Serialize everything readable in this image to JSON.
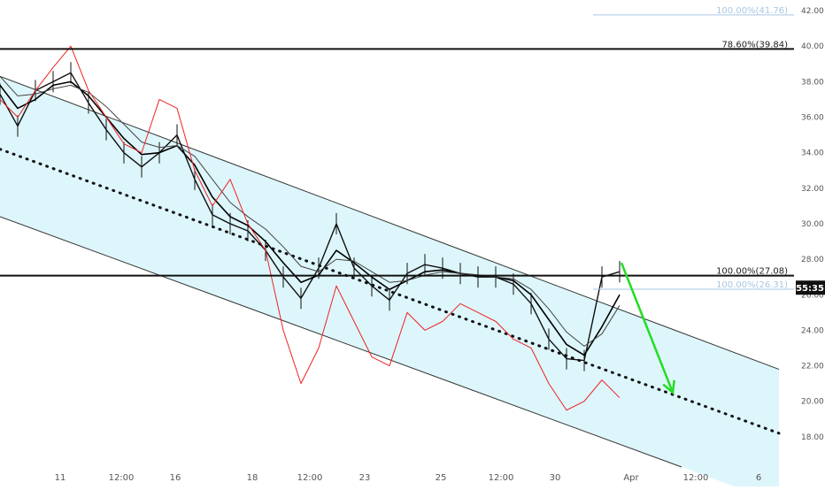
{
  "chart_data": {
    "type": "line",
    "title": "",
    "xlabel": "",
    "ylabel": "",
    "ylim": [
      16.3,
      42.6
    ],
    "y_ticks": [
      "18.00",
      "20.00",
      "22.00",
      "24.00",
      "26.00",
      "28.00",
      "30.00",
      "32.00",
      "34.00",
      "36.00",
      "38.00",
      "40.00",
      "42.00"
    ],
    "x_ticks": [
      "11",
      "12:00",
      "16",
      "18",
      "12:00",
      "23",
      "25",
      "12:00",
      "30",
      "Apr",
      "12:00",
      "6"
    ],
    "grid": false,
    "y_axis_position": "right",
    "price_tag": "55:35",
    "x": [
      0,
      20,
      40,
      60,
      80,
      100,
      120,
      140,
      160,
      180,
      200,
      220,
      240,
      260,
      280,
      300,
      320,
      340,
      360,
      380,
      400,
      420,
      440,
      460,
      480,
      500,
      520,
      540,
      560,
      580,
      600,
      620,
      640,
      660,
      680,
      700
    ],
    "series": [
      {
        "kind": "price",
        "values": [
          37.3,
          35.5,
          37.5,
          38.0,
          38.5,
          36.8,
          35.3,
          34.0,
          33.2,
          34.0,
          35.0,
          32.5,
          30.5,
          30.0,
          29.6,
          28.5,
          27.0,
          25.8,
          27.5,
          30.0,
          27.5,
          26.5,
          25.7,
          27.2,
          27.7,
          27.5,
          27.2,
          27.0,
          27.0,
          26.6,
          25.5,
          23.5,
          22.4,
          22.3,
          27.0,
          27.3
        ]
      },
      {
        "kind": "ma",
        "values": [
          37.8,
          36.5,
          37.0,
          37.8,
          38.0,
          37.2,
          36.0,
          34.8,
          33.9,
          34.0,
          34.4,
          33.3,
          31.5,
          30.4,
          29.9,
          29.0,
          27.8,
          26.7,
          27.1,
          28.5,
          27.8,
          27.0,
          26.3,
          26.8,
          27.3,
          27.4,
          27.2,
          27.1,
          27.0,
          26.8,
          26.0,
          24.6,
          23.2,
          22.6,
          24.2,
          26.0
        ]
      },
      {
        "kind": "ma",
        "values": [
          38.3,
          37.2,
          37.3,
          37.6,
          37.8,
          37.4,
          36.6,
          35.6,
          34.6,
          34.3,
          34.4,
          33.8,
          32.5,
          31.2,
          30.4,
          29.7,
          28.7,
          27.6,
          27.3,
          28.0,
          27.9,
          27.3,
          26.7,
          26.8,
          27.1,
          27.3,
          27.2,
          27.1,
          27.0,
          26.9,
          26.3,
          25.2,
          23.9,
          23.1,
          23.8,
          25.4
        ]
      },
      {
        "kind": "red",
        "values": [
          37.0,
          36.0,
          37.5,
          38.8,
          40.0,
          37.5,
          36.0,
          34.5,
          34.0,
          37.0,
          36.5,
          33.0,
          31.0,
          32.5,
          30.0,
          28.5,
          24.0,
          21.0,
          23.0,
          26.5,
          24.5,
          22.5,
          22.0,
          25.0,
          24.0,
          24.5,
          25.5,
          25.0,
          24.5,
          23.5,
          23.0,
          21.0,
          19.5,
          20.0,
          21.2,
          20.2
        ]
      }
    ],
    "fib_levels": [
      {
        "label": "100.00%(41.76)",
        "value": 41.76,
        "style": "faint"
      },
      {
        "label": "78.60%(39.84)",
        "value": 39.84,
        "style": "dark"
      },
      {
        "label": "100.00%(27.08)",
        "value": 27.08,
        "style": "dark"
      },
      {
        "label": "100.00%(26.31)",
        "value": 26.31,
        "style": "faint"
      }
    ],
    "channel": {
      "upper": [
        [
          0,
          38.3
        ],
        [
          880,
          21.8
        ]
      ],
      "middle": [
        [
          0,
          34.2
        ],
        [
          880,
          18.2
        ]
      ],
      "lower": [
        [
          0,
          30.4
        ],
        [
          770,
          16.3
        ]
      ]
    },
    "arrow": {
      "from": [
        702,
        27.8
      ],
      "to": [
        760,
        20.5
      ],
      "color": "#22dd22"
    },
    "colors": {
      "channel_fill": "#ddf6fb",
      "price": "#111111",
      "red_line": "#ee2222",
      "fib_faint": "#a9c6e3",
      "fib_dark": "#111111",
      "price_tag": "#111111"
    }
  }
}
